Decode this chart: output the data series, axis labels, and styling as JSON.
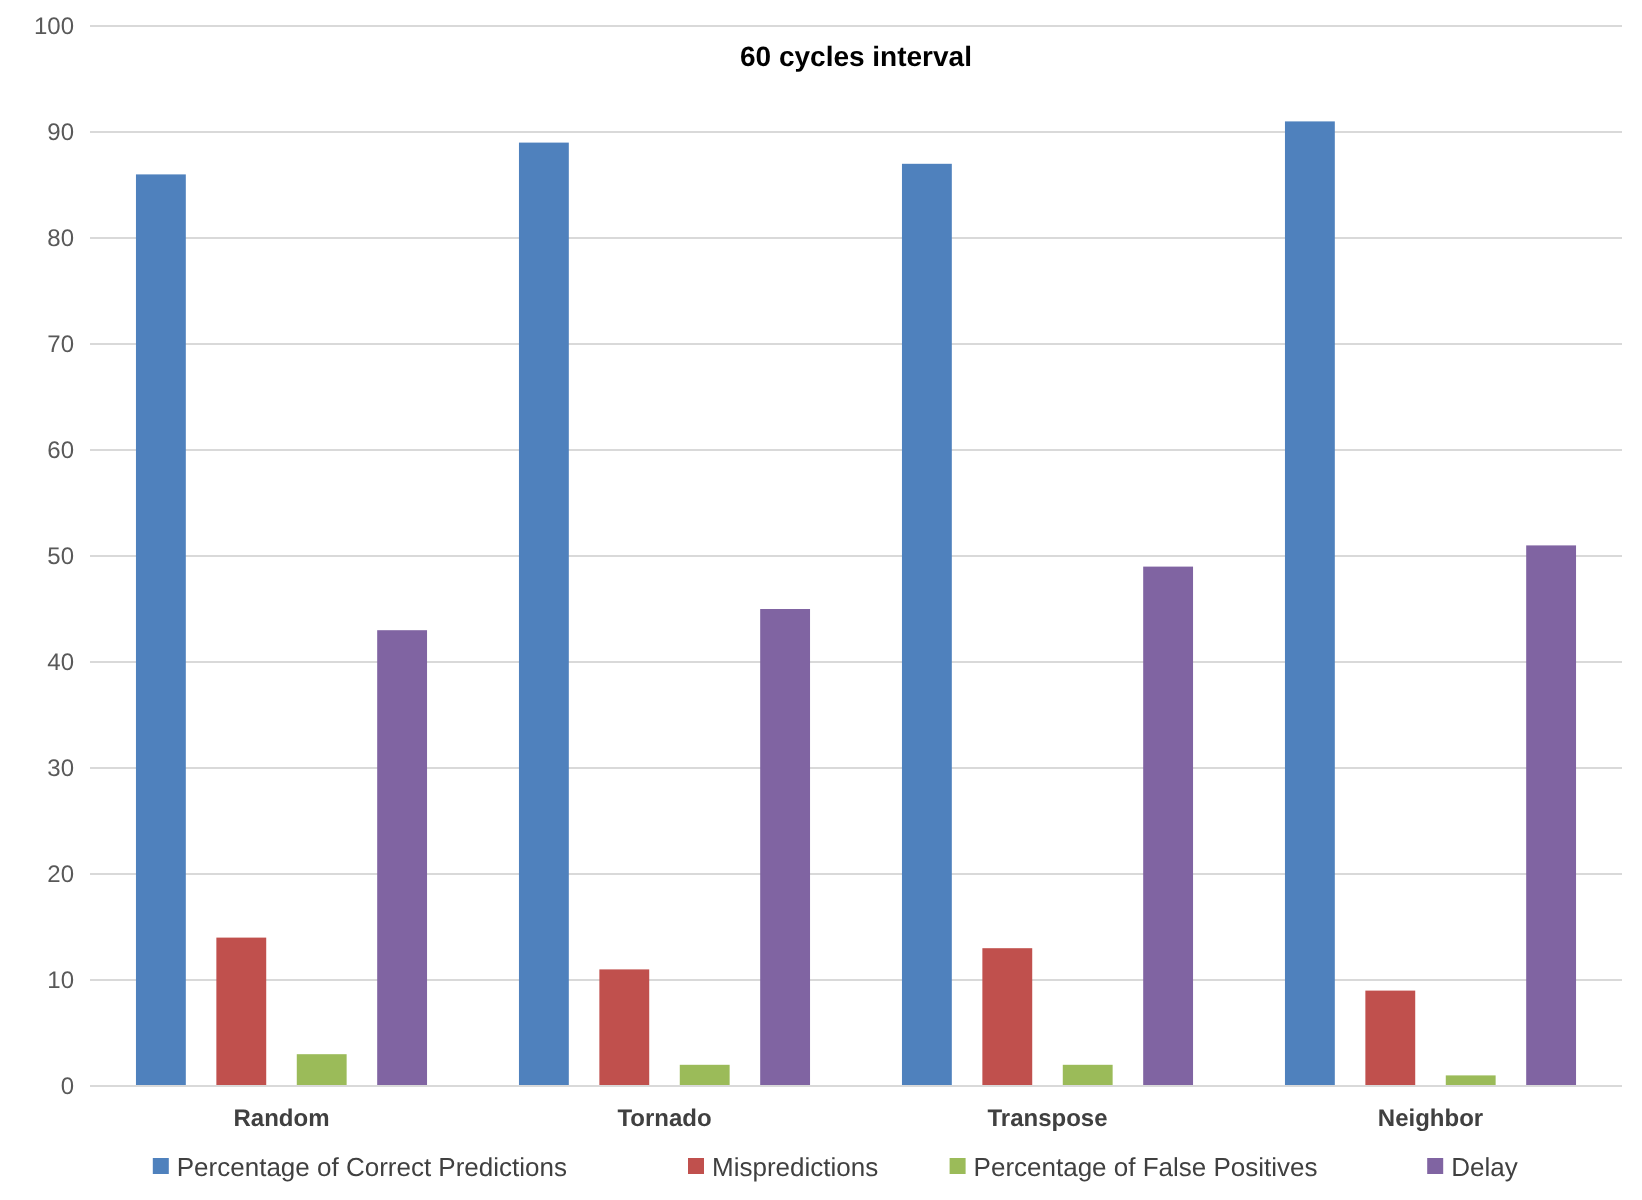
{
  "chart_data": {
    "type": "bar",
    "title": "60 cycles interval",
    "categories": [
      "Random",
      "Tornado",
      "Transpose",
      "Neighbor"
    ],
    "series": [
      {
        "name": "Percentage of Correct Predictions",
        "color": "#4f81bd",
        "values": [
          86,
          89,
          87,
          91
        ]
      },
      {
        "name": "Mispredictions",
        "color": "#c0504d",
        "values": [
          14,
          11,
          13,
          9
        ]
      },
      {
        "name": "Percentage of False Positives",
        "color": "#9bbb59",
        "values": [
          3,
          2,
          2,
          1
        ]
      },
      {
        "name": "Delay",
        "color": "#8064a2",
        "values": [
          43,
          45,
          49,
          51
        ]
      }
    ],
    "ylim": [
      0,
      100
    ],
    "yticks": [
      0,
      10,
      20,
      30,
      40,
      50,
      60,
      70,
      80,
      90,
      100
    ],
    "grid": "y",
    "legend": "bottom"
  }
}
